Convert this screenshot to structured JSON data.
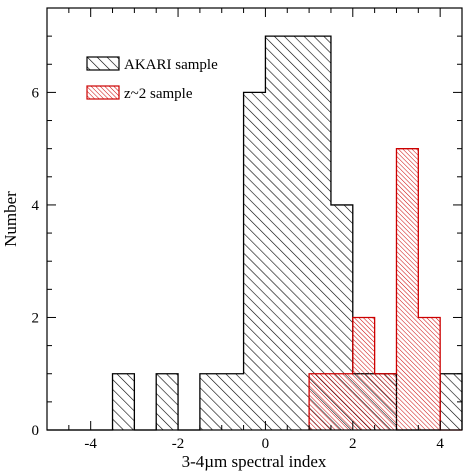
{
  "chart_data": {
    "type": "bar",
    "xlabel": "3-4µm spectral index",
    "ylabel": "Number",
    "xlim": [
      -5.0,
      4.5
    ],
    "ylim": [
      0,
      7.5
    ],
    "xticks": [
      -4,
      -2,
      0,
      2,
      4
    ],
    "yticks": [
      0,
      2,
      4,
      6
    ],
    "xtick_labels": [
      "-4",
      "-2",
      "0",
      "2",
      "4"
    ],
    "ytick_labels": [
      "0",
      "2",
      "4",
      "6"
    ],
    "grid": false,
    "legend_position": "top-left",
    "series": [
      {
        "name": "AKARI sample",
        "color": "#000000",
        "bins": [
          {
            "x0": -5.0,
            "x1": -3.5,
            "count": 0
          },
          {
            "x0": -3.5,
            "x1": -3.0,
            "count": 1
          },
          {
            "x0": -3.0,
            "x1": -2.5,
            "count": 0
          },
          {
            "x0": -2.5,
            "x1": -2.0,
            "count": 1
          },
          {
            "x0": -2.0,
            "x1": -1.5,
            "count": 0
          },
          {
            "x0": -1.5,
            "x1": -0.5,
            "count": 1
          },
          {
            "x0": -0.5,
            "x1": 0.0,
            "count": 6
          },
          {
            "x0": 0.0,
            "x1": 1.5,
            "count": 7
          },
          {
            "x0": 1.5,
            "x1": 2.0,
            "count": 4
          },
          {
            "x0": 2.0,
            "x1": 3.0,
            "count": 1
          },
          {
            "x0": 3.0,
            "x1": 4.0,
            "count": 0
          },
          {
            "x0": 4.0,
            "x1": 4.5,
            "count": 1
          }
        ]
      },
      {
        "name": "z~2 sample",
        "color": "#cc0000",
        "bins": [
          {
            "x0": 1.0,
            "x1": 2.0,
            "count": 1
          },
          {
            "x0": 2.0,
            "x1": 2.5,
            "count": 2
          },
          {
            "x0": 2.5,
            "x1": 3.0,
            "count": 1
          },
          {
            "x0": 3.0,
            "x1": 3.5,
            "count": 5
          },
          {
            "x0": 3.5,
            "x1": 4.0,
            "count": 2
          },
          {
            "x0": 4.0,
            "x1": 4.5,
            "count": 0
          }
        ]
      }
    ]
  }
}
